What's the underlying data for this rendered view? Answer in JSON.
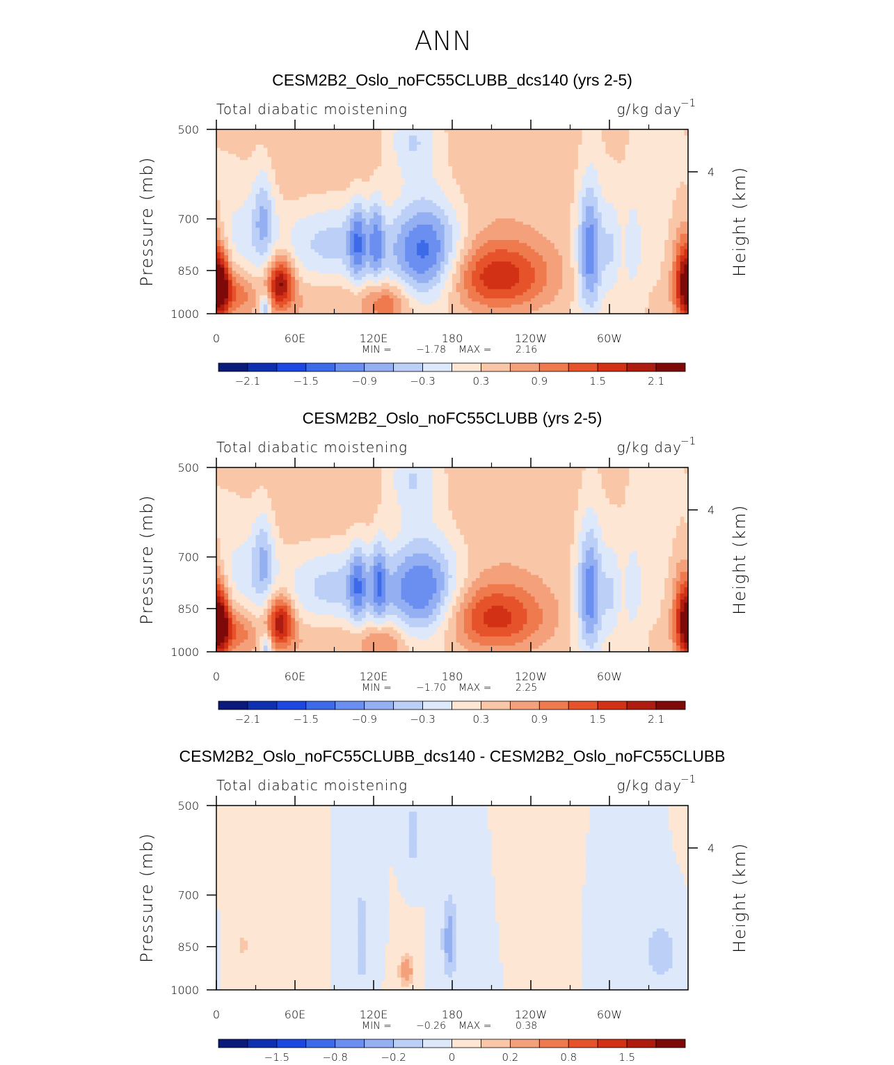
{
  "figure_title": "ANN",
  "colors": {
    "palette": [
      "#0a1a7a",
      "#0d2fb0",
      "#1c47e0",
      "#3d6ae8",
      "#6a8ff0",
      "#94b0f3",
      "#bccff7",
      "#dde8fb",
      "#fde6d3",
      "#f9c7a8",
      "#f4a07a",
      "#ee7a4e",
      "#e6532a",
      "#d33116",
      "#ae1c10",
      "#7d0a09"
    ]
  },
  "chart_data": [
    {
      "type": "heatmap",
      "title": "CESM2B2_Oslo_noFC55CLUBB_dcs140 (yrs 2-5)",
      "subtitle_left": "Total diabatic moistening",
      "units": "g/kg day",
      "units_exp": "−1",
      "ylabel": "Pressure (mb)",
      "ylabel_right": "Height (km)",
      "x_ticks": [
        "0",
        "60E",
        "120E",
        "180",
        "120W",
        "60W"
      ],
      "y_ticks": [
        "500",
        "700",
        "850",
        "1000"
      ],
      "y_right_ticks": [
        "4"
      ],
      "min_label": "MIN =",
      "min_value": "−1.78",
      "max_label": "MAX =",
      "max_value": "2.16",
      "colorbar_labels": [
        "−2.1",
        "−1.5",
        "−0.9",
        "−0.3",
        "0.3",
        "0.9",
        "1.5",
        "2.1"
      ],
      "features": [
        {
          "lon": 4,
          "p": 900,
          "v": 1.6,
          "wl": 5,
          "wp": 70
        },
        {
          "lon": 16,
          "p": 925,
          "v": 0.8,
          "wl": 10,
          "wp": 60
        },
        {
          "lon": 37,
          "p": 980,
          "v": -1.1,
          "wl": 3,
          "wp": 40
        },
        {
          "lon": 49,
          "p": 890,
          "v": 1.8,
          "wl": 7,
          "wp": 60
        },
        {
          "lon": 36,
          "p": 690,
          "v": -0.8,
          "wl": 6,
          "wp": 90
        },
        {
          "lon": 20,
          "p": 740,
          "v": -0.4,
          "wl": 15,
          "wp": 120
        },
        {
          "lon": 90,
          "p": 760,
          "v": -0.8,
          "wl": 30,
          "wp": 85
        },
        {
          "lon": 108,
          "p": 770,
          "v": -1.0,
          "wl": 5,
          "wp": 90
        },
        {
          "lon": 122,
          "p": 760,
          "v": -0.9,
          "wl": 4,
          "wp": 90
        },
        {
          "lon": 160,
          "p": 790,
          "v": -1.7,
          "wl": 19,
          "wp": 110
        },
        {
          "lon": 150,
          "p": 520,
          "v": -0.8,
          "wl": 15,
          "wp": 60
        },
        {
          "lon": 215,
          "p": 870,
          "v": 1.4,
          "wl": 28,
          "wp": 80
        },
        {
          "lon": 210,
          "p": 580,
          "v": 0.2,
          "wl": 90,
          "wp": 170
        },
        {
          "lon": 285,
          "p": 790,
          "v": -1.5,
          "wl": 7,
          "wp": 140
        },
        {
          "lon": 302,
          "p": 780,
          "v": -0.6,
          "wl": 5,
          "wp": 100
        },
        {
          "lon": 318,
          "p": 780,
          "v": -0.5,
          "wl": 5,
          "wp": 100
        },
        {
          "lon": 357,
          "p": 880,
          "v": 1.6,
          "wl": 6,
          "wp": 110
        },
        {
          "lon": 130,
          "p": 960,
          "v": 0.8,
          "wl": 12,
          "wp": 50
        },
        {
          "lon": 60,
          "p": 560,
          "v": 0.25,
          "wl": 70,
          "wp": 110
        },
        {
          "lon": 340,
          "p": 580,
          "v": -0.25,
          "wl": 30,
          "wp": 140
        },
        {
          "lon": 80,
          "p": 960,
          "v": 0.3,
          "wl": 40,
          "wp": 60
        }
      ]
    },
    {
      "type": "heatmap",
      "title": "CESM2B2_Oslo_noFC55CLUBB (yrs 2-5)",
      "subtitle_left": "Total diabatic moistening",
      "units": "g/kg day",
      "units_exp": "−1",
      "ylabel": "Pressure (mb)",
      "ylabel_right": "Height (km)",
      "x_ticks": [
        "0",
        "60E",
        "120E",
        "180",
        "120W",
        "60W"
      ],
      "y_ticks": [
        "500",
        "700",
        "850",
        "1000"
      ],
      "y_right_ticks": [
        "4"
      ],
      "min_label": "MIN =",
      "min_value": "−1.70",
      "max_label": "MAX =",
      "max_value": "2.25",
      "colorbar_labels": [
        "−2.1",
        "−1.5",
        "−0.9",
        "−0.3",
        "0.3",
        "0.9",
        "1.5",
        "2.1"
      ],
      "features": [
        {
          "lon": 4,
          "p": 900,
          "v": 1.6,
          "wl": 5,
          "wp": 70
        },
        {
          "lon": 16,
          "p": 925,
          "v": 0.8,
          "wl": 10,
          "wp": 60
        },
        {
          "lon": 38,
          "p": 985,
          "v": -1.0,
          "wl": 3,
          "wp": 40
        },
        {
          "lon": 49,
          "p": 890,
          "v": 1.7,
          "wl": 7,
          "wp": 60
        },
        {
          "lon": 36,
          "p": 700,
          "v": -0.8,
          "wl": 6,
          "wp": 90
        },
        {
          "lon": 20,
          "p": 740,
          "v": -0.4,
          "wl": 15,
          "wp": 120
        },
        {
          "lon": 92,
          "p": 780,
          "v": -0.8,
          "wl": 30,
          "wp": 85
        },
        {
          "lon": 108,
          "p": 780,
          "v": -0.9,
          "wl": 5,
          "wp": 90
        },
        {
          "lon": 124,
          "p": 770,
          "v": -0.9,
          "wl": 4,
          "wp": 90
        },
        {
          "lon": 158,
          "p": 790,
          "v": -1.6,
          "wl": 20,
          "wp": 110
        },
        {
          "lon": 150,
          "p": 520,
          "v": -0.8,
          "wl": 15,
          "wp": 60
        },
        {
          "lon": 212,
          "p": 880,
          "v": 1.3,
          "wl": 28,
          "wp": 80
        },
        {
          "lon": 210,
          "p": 580,
          "v": 0.2,
          "wl": 90,
          "wp": 170
        },
        {
          "lon": 285,
          "p": 800,
          "v": -1.5,
          "wl": 7,
          "wp": 140
        },
        {
          "lon": 302,
          "p": 800,
          "v": -0.6,
          "wl": 5,
          "wp": 100
        },
        {
          "lon": 318,
          "p": 790,
          "v": -0.5,
          "wl": 5,
          "wp": 100
        },
        {
          "lon": 357,
          "p": 880,
          "v": 1.6,
          "wl": 6,
          "wp": 110
        },
        {
          "lon": 128,
          "p": 960,
          "v": 0.6,
          "wl": 12,
          "wp": 50
        },
        {
          "lon": 60,
          "p": 560,
          "v": 0.25,
          "wl": 70,
          "wp": 110
        },
        {
          "lon": 340,
          "p": 580,
          "v": -0.25,
          "wl": 30,
          "wp": 140
        },
        {
          "lon": 80,
          "p": 960,
          "v": 0.3,
          "wl": 40,
          "wp": 60
        }
      ]
    },
    {
      "type": "heatmap",
      "title": "CESM2B2_Oslo_noFC55CLUBB_dcs140 - CESM2B2_Oslo_noFC55CLUBB",
      "subtitle_left": "Total diabatic moistening",
      "units": "g/kg day",
      "units_exp": "−1",
      "ylabel": "Pressure (mb)",
      "ylabel_right": "Height (km)",
      "x_ticks": [
        "0",
        "60E",
        "120E",
        "180",
        "120W",
        "60W"
      ],
      "y_ticks": [
        "500",
        "700",
        "850",
        "1000"
      ],
      "y_right_ticks": [
        "4"
      ],
      "min_label": "MIN =",
      "min_value": "−0.26",
      "max_label": "MAX =",
      "max_value": "0.38",
      "colorbar_labels": [
        "−1.5",
        "−0.8",
        "−0.2",
        "0",
        "0.2",
        "0.8",
        "1.5"
      ],
      "features": [
        {
          "lon": 145,
          "p": 930,
          "v": 0.3,
          "wl": 4,
          "wp": 40
        },
        {
          "lon": 178,
          "p": 830,
          "v": -0.25,
          "wl": 4,
          "wp": 90
        },
        {
          "lon": 111,
          "p": 840,
          "v": -0.2,
          "wl": 3,
          "wp": 90
        },
        {
          "lon": 150,
          "p": 560,
          "v": -0.15,
          "wl": 5,
          "wp": 60
        },
        {
          "lon": 60,
          "p": 650,
          "v": 0.08,
          "wl": 20,
          "wp": 150
        },
        {
          "lon": 240,
          "p": 700,
          "v": 0.06,
          "wl": 40,
          "wp": 200
        },
        {
          "lon": 340,
          "p": 870,
          "v": -0.15,
          "wl": 10,
          "wp": 80
        },
        {
          "lon": 200,
          "p": 750,
          "v": -0.06,
          "wl": 20,
          "wp": 200
        },
        {
          "lon": 20,
          "p": 850,
          "v": 0.1,
          "wl": 8,
          "wp": 80
        },
        {
          "lon": 100,
          "p": 650,
          "v": -0.06,
          "wl": 12,
          "wp": 150
        },
        {
          "lon": 300,
          "p": 750,
          "v": -0.07,
          "wl": 18,
          "wp": 180
        }
      ]
    }
  ]
}
